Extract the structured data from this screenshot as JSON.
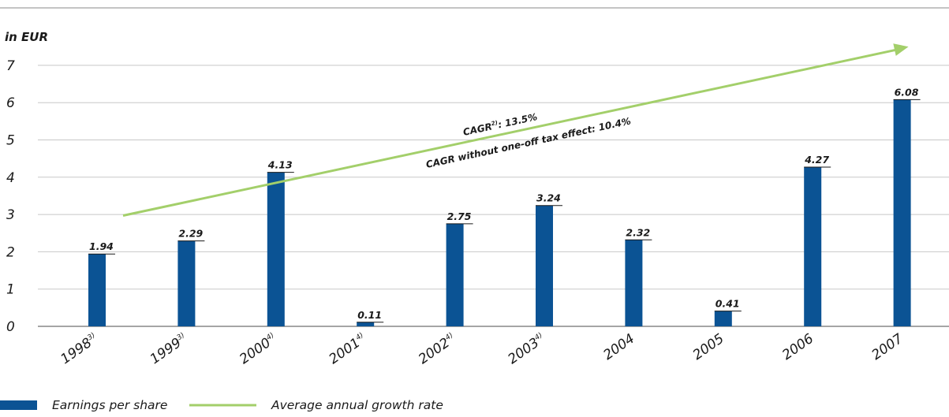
{
  "chart_data": {
    "type": "bar",
    "unit_label": "in EUR",
    "categories": [
      {
        "label": "1998",
        "sup": "3)"
      },
      {
        "label": "1999",
        "sup": "3)"
      },
      {
        "label": "2000",
        "sup": "4)"
      },
      {
        "label": "2001",
        "sup": "4)"
      },
      {
        "label": "2002",
        "sup": "4)"
      },
      {
        "label": "2003",
        "sup": "4)"
      },
      {
        "label": "2004",
        "sup": ""
      },
      {
        "label": "2005",
        "sup": ""
      },
      {
        "label": "2006",
        "sup": ""
      },
      {
        "label": "2007",
        "sup": ""
      }
    ],
    "series": [
      {
        "name": "Earnings per share",
        "color": "#0b5394",
        "values": [
          1.94,
          2.29,
          4.13,
          0.11,
          2.75,
          3.24,
          2.32,
          0.41,
          4.27,
          6.08
        ],
        "value_labels": [
          "1.94",
          "2.29",
          "4.13",
          "0.11",
          "2.75",
          "3.24",
          "2.32",
          "0.41",
          "4.27",
          "6.08"
        ]
      }
    ],
    "trend": {
      "name": "Average annual growth rate",
      "color": "#a3cf6a",
      "from": {
        "category": "1998",
        "y": 2.97
      },
      "to": {
        "category": "2007",
        "y": 7.5
      }
    },
    "annotations": [
      {
        "text": "CAGR",
        "sup": "2)",
        "suffix": ": 13.5%"
      },
      {
        "text": "CAGR without one-off tax effect: 10.4%"
      }
    ],
    "yticks": [
      "0",
      "1",
      "2",
      "3",
      "4",
      "5",
      "6",
      "7"
    ],
    "ylim": [
      0,
      7
    ],
    "grid": true,
    "legend_position": "bottom-left"
  }
}
